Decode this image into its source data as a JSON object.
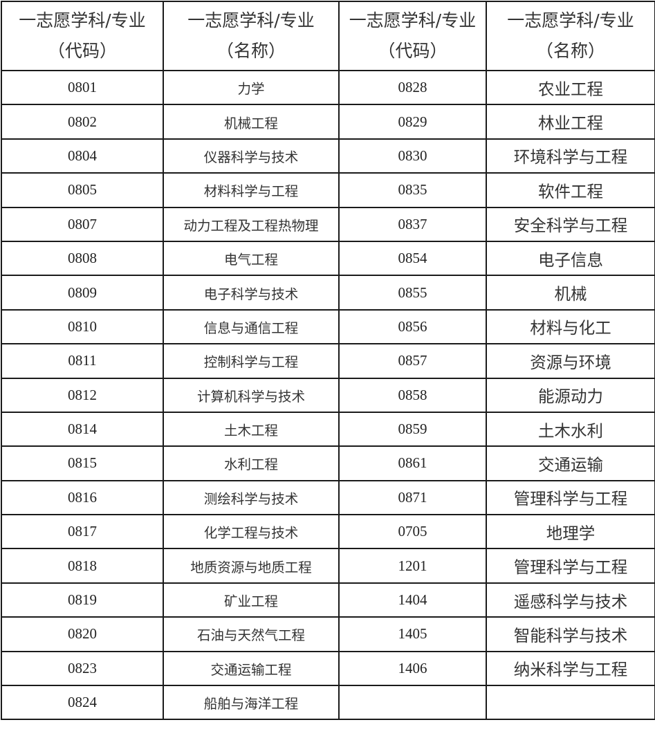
{
  "headers": [
    {
      "line1": "一志愿学科/专业",
      "line2": "（代码）"
    },
    {
      "line1": "一志愿学科/专业",
      "line2": "（名称）"
    },
    {
      "line1": "一志愿学科/专业",
      "line2": "（代码）"
    },
    {
      "line1": "一志愿学科/专业",
      "line2": "（名称）"
    }
  ],
  "rows": [
    {
      "code1": "0801",
      "name1": "力学",
      "code2": "0828",
      "name2": "农业工程"
    },
    {
      "code1": "0802",
      "name1": "机械工程",
      "code2": "0829",
      "name2": "林业工程"
    },
    {
      "code1": "0804",
      "name1": "仪器科学与技术",
      "code2": "0830",
      "name2": "环境科学与工程"
    },
    {
      "code1": "0805",
      "name1": "材料科学与工程",
      "code2": "0835",
      "name2": "软件工程"
    },
    {
      "code1": "0807",
      "name1": "动力工程及工程热物理",
      "code2": "0837",
      "name2": "安全科学与工程"
    },
    {
      "code1": "0808",
      "name1": "电气工程",
      "code2": "0854",
      "name2": "电子信息"
    },
    {
      "code1": "0809",
      "name1": "电子科学与技术",
      "code2": "0855",
      "name2": "机械"
    },
    {
      "code1": "0810",
      "name1": "信息与通信工程",
      "code2": "0856",
      "name2": "材料与化工"
    },
    {
      "code1": "0811",
      "name1": "控制科学与工程",
      "code2": "0857",
      "name2": "资源与环境"
    },
    {
      "code1": "0812",
      "name1": "计算机科学与技术",
      "code2": "0858",
      "name2": "能源动力"
    },
    {
      "code1": "0814",
      "name1": "土木工程",
      "code2": "0859",
      "name2": "土木水利"
    },
    {
      "code1": "0815",
      "name1": "水利工程",
      "code2": "0861",
      "name2": "交通运输"
    },
    {
      "code1": "0816",
      "name1": "测绘科学与技术",
      "code2": "0871",
      "name2": "管理科学与工程"
    },
    {
      "code1": "0817",
      "name1": "化学工程与技术",
      "code2": "0705",
      "name2": "地理学"
    },
    {
      "code1": "0818",
      "name1": "地质资源与地质工程",
      "code2": "1201",
      "name2": "管理科学与工程"
    },
    {
      "code1": "0819",
      "name1": "矿业工程",
      "code2": "1404",
      "name2": "遥感科学与技术"
    },
    {
      "code1": "0820",
      "name1": "石油与天然气工程",
      "code2": "1405",
      "name2": "智能科学与技术"
    },
    {
      "code1": "0823",
      "name1": "交通运输工程",
      "code2": "1406",
      "name2": "纳米科学与工程"
    },
    {
      "code1": "0824",
      "name1": "船舶与海洋工程",
      "code2": "",
      "name2": ""
    }
  ]
}
